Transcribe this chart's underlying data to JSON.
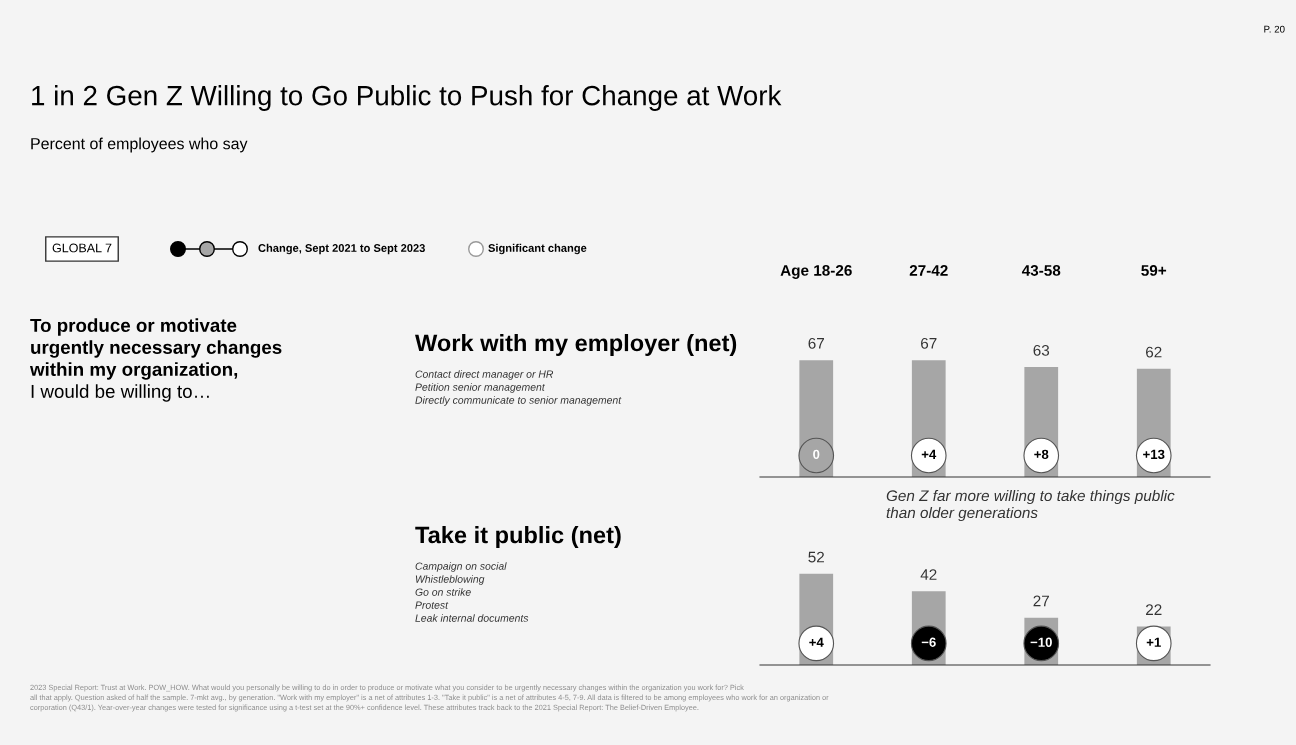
{
  "chart_data": [
    {
      "type": "other",
      "title": "1 in 2 Gen Z Willing to Go Public to Push for Change at Work",
      "subtitle": "Percent of employees who say",
      "annotations": [
        "P. 20",
        "GLOBAL 7",
        "Change, Sept 2021 to Sept 2023",
        "Significant change",
        "To produce or motivate",
        "urgently necessary changes",
        "within my organization,",
        "I would be willing to…",
        "2023 Special Report: Trust at Work. POW_HOW. What would you personally be willing to do in order to produce or motivate what you consider to be urgently necessary changes within the organization you work for? Pick",
        "all that apply. Question asked of half the sample. 7-mkt avg., by generation. \"Work with my employer\" is a net of attributes 1-3. \"Take it public\" is a net of attributes 4-5, 7-9. All data is filtered to be among employees who work for an organization or",
        "corporation (Q43/1). Year-over-year changes were tested for significance using a t-test set at the 90%+ confidence level. These attributes track back to the 2021 Special Report: The Belief-Driven Employee."
      ]
    },
    {
      "type": "bar",
      "title": "Work with my employer (net)",
      "categories": [
        "Age 18-26",
        "27-42",
        "43-58",
        "59+"
      ],
      "tick_labels": "x",
      "data_labels": true,
      "color": "#a6a6a6",
      "values": [
        67,
        67,
        63,
        62
      ],
      "annotations": [
        "Contact direct manager or HR",
        "Petition senior management",
        "Directly communicate to senior management",
        "0",
        "+4",
        "+8",
        "+13"
      ]
    },
    {
      "type": "bar",
      "title": "Take it public (net)",
      "categories": [
        null,
        null,
        null,
        null
      ],
      "data_labels": true,
      "color": "#a6a6a6",
      "values": [
        52,
        42,
        27,
        22
      ],
      "annotations": [
        "Campaign on social",
        "Whistleblowing",
        "Go on strike",
        "Protest",
        "Leak internal documents",
        "Gen Z far more willing to take things public",
        "than older generations",
        "+4",
        "−6",
        "−10",
        "+1"
      ]
    }
  ]
}
